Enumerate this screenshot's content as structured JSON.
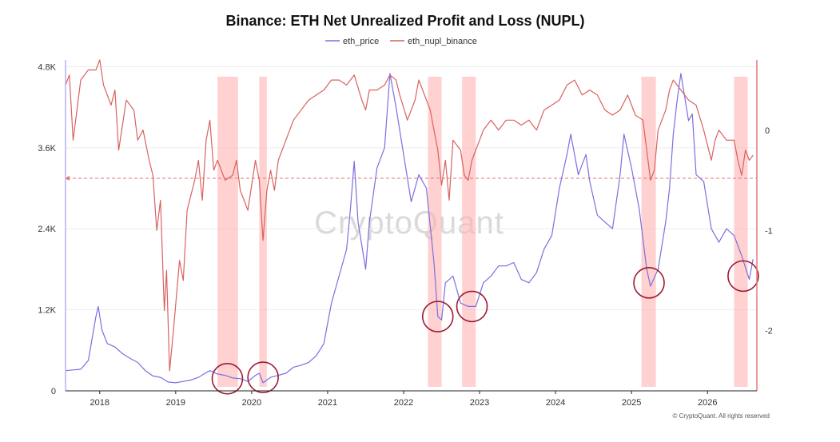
{
  "chart_data": {
    "type": "line",
    "title": "Binance: ETH Net Unrealized Profit and Loss (NUPL)",
    "x_ticks": [
      "2018",
      "2019",
      "2020",
      "2021",
      "2022",
      "2023",
      "2024",
      "2025",
      "2026"
    ],
    "x_range": [
      2017.6,
      2026.7
    ],
    "y_left": {
      "ticks": [
        "0",
        "1.2K",
        "2.4K",
        "3.6K",
        "4.8K"
      ],
      "tick_values": [
        0,
        1200,
        2400,
        3600,
        4800
      ],
      "range": [
        0,
        4900
      ]
    },
    "y_right": {
      "ticks": [
        "-2",
        "-1",
        "0"
      ],
      "tick_values": [
        -2,
        -1,
        0
      ],
      "range": [
        -2.6,
        0.7
      ]
    },
    "threshold_line": -0.48,
    "grid": true,
    "legend_position": "top-center",
    "series": [
      {
        "name": "eth_price",
        "axis": "left",
        "color": "#7b6fe0",
        "x": [
          2017.6,
          2017.7,
          2017.8,
          2017.9,
          2018.0,
          2018.03,
          2018.08,
          2018.15,
          2018.25,
          2018.35,
          2018.45,
          2018.55,
          2018.65,
          2018.75,
          2018.85,
          2018.95,
          2019.05,
          2019.15,
          2019.25,
          2019.35,
          2019.45,
          2019.5,
          2019.6,
          2019.7,
          2019.8,
          2019.9,
          2020.0,
          2020.1,
          2020.15,
          2020.2,
          2020.3,
          2020.4,
          2020.5,
          2020.6,
          2020.7,
          2020.8,
          2020.9,
          2021.0,
          2021.1,
          2021.2,
          2021.3,
          2021.35,
          2021.4,
          2021.45,
          2021.55,
          2021.6,
          2021.7,
          2021.8,
          2021.87,
          2021.95,
          2022.05,
          2022.15,
          2022.25,
          2022.35,
          2022.45,
          2022.5,
          2022.55,
          2022.6,
          2022.7,
          2022.8,
          2022.9,
          2023.0,
          2023.1,
          2023.2,
          2023.3,
          2023.4,
          2023.5,
          2023.6,
          2023.7,
          2023.8,
          2023.9,
          2024.0,
          2024.1,
          2024.2,
          2024.25,
          2024.35,
          2024.45,
          2024.5,
          2024.6,
          2024.7,
          2024.8,
          2024.9,
          2024.95,
          2025.05,
          2025.15,
          2025.25,
          2025.3,
          2025.4,
          2025.5,
          2025.55,
          2025.6,
          2025.65,
          2025.7,
          2025.8,
          2025.85,
          2025.9,
          2026.0,
          2026.1,
          2026.2,
          2026.3,
          2026.4,
          2026.5,
          2026.6,
          2026.65
        ],
        "values": [
          300,
          310,
          320,
          450,
          1100,
          1250,
          900,
          700,
          650,
          550,
          480,
          420,
          300,
          220,
          200,
          130,
          120,
          140,
          160,
          200,
          270,
          300,
          250,
          230,
          190,
          180,
          140,
          230,
          260,
          120,
          200,
          230,
          260,
          350,
          380,
          420,
          520,
          700,
          1300,
          1700,
          2100,
          2700,
          3400,
          2500,
          1800,
          2500,
          3300,
          3600,
          4700,
          4200,
          3500,
          2800,
          3200,
          3000,
          1900,
          1100,
          1050,
          1600,
          1700,
          1300,
          1250,
          1250,
          1600,
          1700,
          1850,
          1850,
          1900,
          1650,
          1600,
          1750,
          2100,
          2300,
          3000,
          3500,
          3800,
          3200,
          3500,
          3100,
          2600,
          2500,
          2400,
          3200,
          3800,
          3300,
          2700,
          1800,
          1550,
          1800,
          2500,
          3000,
          3800,
          4300,
          4700,
          4000,
          4100,
          3200,
          3100,
          2400,
          2200,
          2400,
          2300,
          2000,
          1650,
          1950
        ]
      },
      {
        "name": "eth_nupl_binance",
        "axis": "right",
        "color": "#d9625f",
        "x": [
          2017.6,
          2017.65,
          2017.7,
          2017.8,
          2017.9,
          2018.0,
          2018.05,
          2018.1,
          2018.2,
          2018.25,
          2018.3,
          2018.4,
          2018.5,
          2018.55,
          2018.62,
          2018.7,
          2018.75,
          2018.8,
          2018.85,
          2018.9,
          2018.93,
          2018.97,
          2019.02,
          2019.1,
          2019.15,
          2019.2,
          2019.3,
          2019.35,
          2019.4,
          2019.45,
          2019.5,
          2019.55,
          2019.6,
          2019.7,
          2019.8,
          2019.85,
          2019.9,
          2019.95,
          2020.0,
          2020.1,
          2020.15,
          2020.2,
          2020.25,
          2020.3,
          2020.35,
          2020.4,
          2020.5,
          2020.6,
          2020.7,
          2020.8,
          2020.9,
          2021.0,
          2021.1,
          2021.2,
          2021.3,
          2021.4,
          2021.5,
          2021.55,
          2021.6,
          2021.7,
          2021.8,
          2021.87,
          2021.95,
          2022.0,
          2022.1,
          2022.2,
          2022.25,
          2022.3,
          2022.4,
          2022.45,
          2022.5,
          2022.55,
          2022.6,
          2022.65,
          2022.7,
          2022.8,
          2022.85,
          2022.9,
          2022.95,
          2023.0,
          2023.1,
          2023.2,
          2023.3,
          2023.4,
          2023.5,
          2023.6,
          2023.7,
          2023.8,
          2023.9,
          2024.0,
          2024.1,
          2024.2,
          2024.3,
          2024.4,
          2024.5,
          2024.6,
          2024.7,
          2024.8,
          2024.9,
          2025.0,
          2025.1,
          2025.2,
          2025.25,
          2025.3,
          2025.35,
          2025.4,
          2025.5,
          2025.55,
          2025.6,
          2025.65,
          2025.7,
          2025.8,
          2025.9,
          2026.0,
          2026.1,
          2026.15,
          2026.2,
          2026.3,
          2026.4,
          2026.45,
          2026.5,
          2026.55,
          2026.6,
          2026.65
        ],
        "values": [
          0.45,
          0.55,
          -0.1,
          0.5,
          0.6,
          0.6,
          0.7,
          0.45,
          0.25,
          0.4,
          -0.2,
          0.3,
          0.2,
          -0.1,
          0.0,
          -0.3,
          -0.45,
          -1.0,
          -0.7,
          -1.8,
          -1.4,
          -2.4,
          -2.0,
          -1.3,
          -1.5,
          -0.8,
          -0.5,
          -0.3,
          -0.7,
          -0.1,
          0.1,
          -0.4,
          -0.3,
          -0.5,
          -0.45,
          -0.3,
          -0.6,
          -0.7,
          -0.8,
          -0.3,
          -0.5,
          -1.1,
          -0.6,
          -0.4,
          -0.6,
          -0.3,
          -0.1,
          0.1,
          0.2,
          0.3,
          0.35,
          0.4,
          0.5,
          0.5,
          0.45,
          0.55,
          0.3,
          0.2,
          0.4,
          0.4,
          0.45,
          0.55,
          0.5,
          0.35,
          0.1,
          0.3,
          0.5,
          0.4,
          0.2,
          0.0,
          -0.2,
          -0.55,
          -0.3,
          -0.7,
          -0.1,
          -0.2,
          -0.45,
          -0.5,
          -0.3,
          -0.2,
          0.0,
          0.1,
          0.0,
          0.1,
          0.1,
          0.05,
          0.1,
          0.0,
          0.2,
          0.25,
          0.3,
          0.45,
          0.5,
          0.35,
          0.4,
          0.35,
          0.2,
          0.15,
          0.2,
          0.35,
          0.15,
          0.1,
          -0.2,
          -0.5,
          -0.4,
          0.0,
          0.2,
          0.4,
          0.5,
          0.45,
          0.4,
          0.3,
          0.25,
          0.0,
          -0.3,
          -0.1,
          0.0,
          -0.1,
          -0.1,
          -0.3,
          -0.45,
          -0.2,
          -0.3,
          -0.25
        ]
      }
    ],
    "highlight_bands": [
      [
        2019.6,
        2019.87
      ],
      [
        2020.15,
        2020.25
      ],
      [
        2022.37,
        2022.55
      ],
      [
        2022.82,
        2023.0
      ],
      [
        2025.18,
        2025.37
      ],
      [
        2026.4,
        2026.58
      ]
    ],
    "circles": [
      {
        "x": 2019.73,
        "y": 180
      },
      {
        "x": 2020.2,
        "y": 200
      },
      {
        "x": 2022.5,
        "y": 1100
      },
      {
        "x": 2022.95,
        "y": 1250
      },
      {
        "x": 2025.28,
        "y": 1600
      },
      {
        "x": 2026.52,
        "y": 1700
      }
    ],
    "watermark": "CryptoQuant",
    "credit": "© CryptoQuant. All rights reserved"
  }
}
